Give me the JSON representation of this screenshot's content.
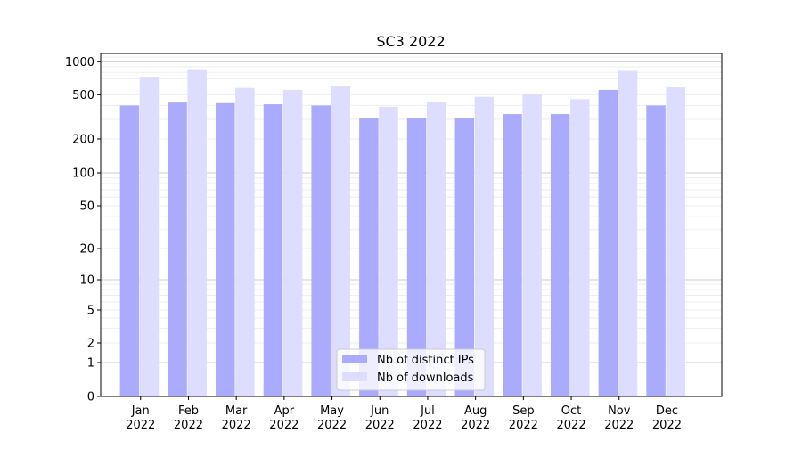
{
  "chart_data": {
    "type": "bar",
    "title": "SC3 2022",
    "xlabel": "",
    "ylabel": "",
    "yscale": "symlog",
    "ylim": [
      0,
      1200
    ],
    "yticks": [
      0,
      1,
      2,
      5,
      10,
      20,
      50,
      100,
      200,
      500,
      1000
    ],
    "ytick_labels": [
      "0",
      "1",
      "2",
      "5",
      "10",
      "20",
      "50",
      "100",
      "200",
      "500",
      "1000"
    ],
    "grid": true,
    "legend_position": "bottom-center",
    "categories": [
      "Jan\n2022",
      "Feb\n2022",
      "Mar\n2022",
      "Apr\n2022",
      "May\n2022",
      "Jun\n2022",
      "Jul\n2022",
      "Aug\n2022",
      "Sep\n2022",
      "Oct\n2022",
      "Nov\n2022",
      "Dec\n2022"
    ],
    "category_lines": [
      [
        "Jan",
        "2022"
      ],
      [
        "Feb",
        "2022"
      ],
      [
        "Mar",
        "2022"
      ],
      [
        "Apr",
        "2022"
      ],
      [
        "May",
        "2022"
      ],
      [
        "Jun",
        "2022"
      ],
      [
        "Jul",
        "2022"
      ],
      [
        "Aug",
        "2022"
      ],
      [
        "Sep",
        "2022"
      ],
      [
        "Oct",
        "2022"
      ],
      [
        "Nov",
        "2022"
      ],
      [
        "Dec",
        "2022"
      ]
    ],
    "series": [
      {
        "name": "Nb of distinct IPs",
        "color": "#aaaaff",
        "values": [
          400,
          425,
          420,
          410,
          400,
          306,
          310,
          310,
          335,
          335,
          553,
          400
        ]
      },
      {
        "name": "Nb of downloads",
        "color": "#ddddff",
        "values": [
          730,
          840,
          577,
          553,
          593,
          390,
          425,
          478,
          503,
          455,
          825,
          583
        ]
      }
    ]
  }
}
